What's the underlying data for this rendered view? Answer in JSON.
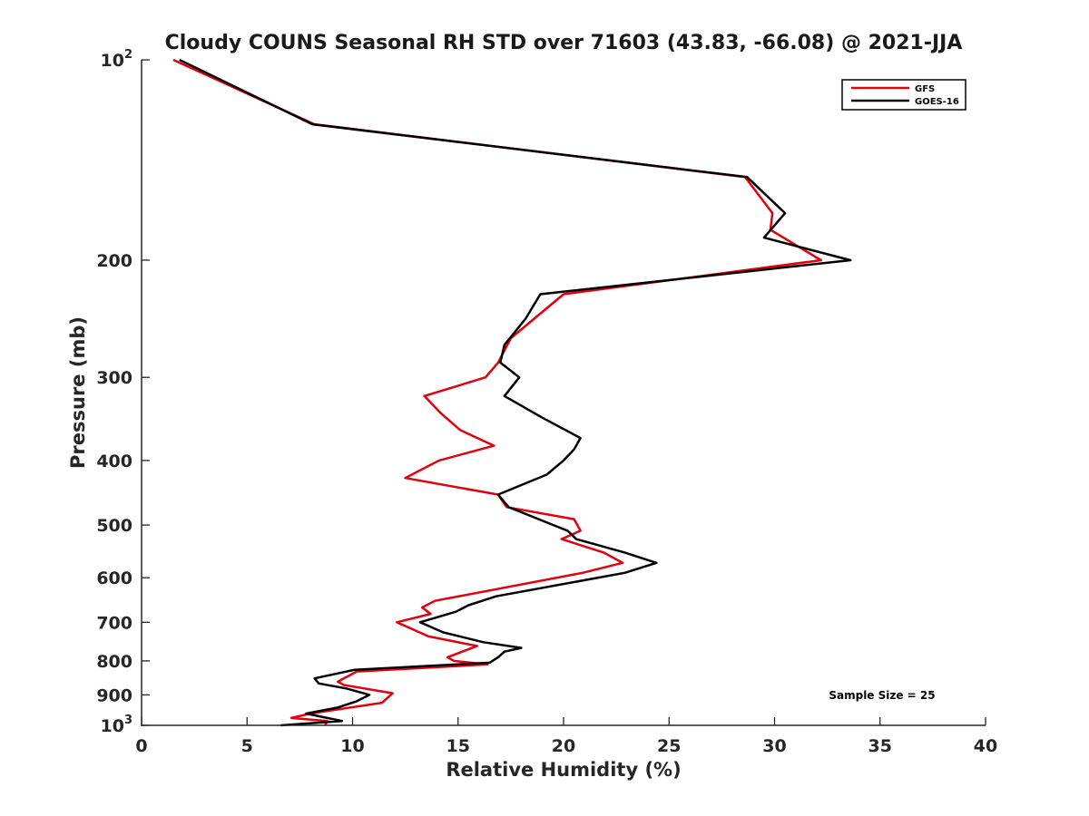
{
  "chart_data": {
    "type": "line",
    "title": "Cloudy COUNS Seasonal RH STD over 71603 (43.83, -66.08) @ 2021-JJA",
    "xlabel": "Relative Humidity (%)",
    "ylabel": "Pressure (mb)",
    "xlim": [
      0,
      40
    ],
    "ylim": [
      100,
      1000
    ],
    "yscale": "log",
    "y_reversed": true,
    "x_ticks": [
      0,
      5,
      10,
      15,
      20,
      25,
      30,
      35,
      40
    ],
    "x_tick_labels": [
      "0",
      "5",
      "10",
      "15",
      "20",
      "25",
      "30",
      "35",
      "40"
    ],
    "y_ticks": [
      100,
      200,
      300,
      400,
      500,
      600,
      700,
      800,
      900,
      1000
    ],
    "y_tick_labels": [
      {
        "base": "10",
        "exp": "2"
      },
      {
        "base": "200"
      },
      {
        "base": "300"
      },
      {
        "base": "400"
      },
      {
        "base": "500"
      },
      {
        "base": "600"
      },
      {
        "base": "700"
      },
      {
        "base": "800"
      },
      {
        "base": "900"
      },
      {
        "base": "10",
        "exp": "3"
      }
    ],
    "grid": false,
    "legend_position": "top-right",
    "annotation": "Sample Size = 25",
    "series": [
      {
        "name": "GFS",
        "color": "#e0000f",
        "points": [
          [
            1.5,
            100
          ],
          [
            8.2,
            125
          ],
          [
            28.6,
            150
          ],
          [
            29.9,
            170
          ],
          [
            29.8,
            180
          ],
          [
            32.2,
            200
          ],
          [
            20.0,
            225
          ],
          [
            17.5,
            262
          ],
          [
            16.9,
            285
          ],
          [
            16.3,
            300
          ],
          [
            13.4,
            320
          ],
          [
            14.2,
            340
          ],
          [
            15.1,
            360
          ],
          [
            16.7,
            380
          ],
          [
            14.1,
            400
          ],
          [
            12.5,
            425
          ],
          [
            16.9,
            450
          ],
          [
            17.3,
            470
          ],
          [
            20.5,
            490
          ],
          [
            20.8,
            510
          ],
          [
            19.9,
            525
          ],
          [
            21.9,
            550
          ],
          [
            22.8,
            570
          ],
          [
            20.9,
            590
          ],
          [
            13.9,
            650
          ],
          [
            13.3,
            665
          ],
          [
            13.7,
            680
          ],
          [
            12.1,
            700
          ],
          [
            13.6,
            735
          ],
          [
            15.9,
            760
          ],
          [
            14.5,
            790
          ],
          [
            14.8,
            800
          ],
          [
            16.4,
            810
          ],
          [
            10.2,
            830
          ],
          [
            9.3,
            860
          ],
          [
            9.6,
            870
          ],
          [
            11.9,
            895
          ],
          [
            11.4,
            925
          ],
          [
            8.0,
            960
          ],
          [
            7.1,
            975
          ],
          [
            8.8,
            985
          ],
          [
            8.7,
            1000
          ]
        ]
      },
      {
        "name": "GOES-16",
        "color": "#000000",
        "points": [
          [
            1.8,
            100
          ],
          [
            8.1,
            125
          ],
          [
            28.7,
            150
          ],
          [
            30.5,
            170
          ],
          [
            29.5,
            185
          ],
          [
            33.6,
            200
          ],
          [
            18.9,
            225
          ],
          [
            18.2,
            245
          ],
          [
            17.2,
            268
          ],
          [
            17.0,
            285
          ],
          [
            17.9,
            300
          ],
          [
            17.2,
            320
          ],
          [
            19.0,
            345
          ],
          [
            20.8,
            370
          ],
          [
            20.5,
            385
          ],
          [
            20.0,
            400
          ],
          [
            19.2,
            420
          ],
          [
            16.9,
            450
          ],
          [
            17.4,
            470
          ],
          [
            19.5,
            500
          ],
          [
            20.2,
            510
          ],
          [
            20.6,
            525
          ],
          [
            22.9,
            550
          ],
          [
            24.4,
            570
          ],
          [
            22.9,
            590
          ],
          [
            16.8,
            640
          ],
          [
            15.5,
            660
          ],
          [
            14.9,
            675
          ],
          [
            13.2,
            700
          ],
          [
            14.3,
            725
          ],
          [
            16.2,
            750
          ],
          [
            18.0,
            765
          ],
          [
            17.2,
            775
          ],
          [
            16.9,
            790
          ],
          [
            16.5,
            805
          ],
          [
            10.1,
            825
          ],
          [
            8.2,
            850
          ],
          [
            8.4,
            865
          ],
          [
            9.7,
            880
          ],
          [
            10.8,
            900
          ],
          [
            10.2,
            920
          ],
          [
            9.3,
            940
          ],
          [
            7.8,
            960
          ],
          [
            8.8,
            975
          ],
          [
            9.5,
            985
          ],
          [
            6.6,
            1000
          ]
        ]
      }
    ]
  }
}
